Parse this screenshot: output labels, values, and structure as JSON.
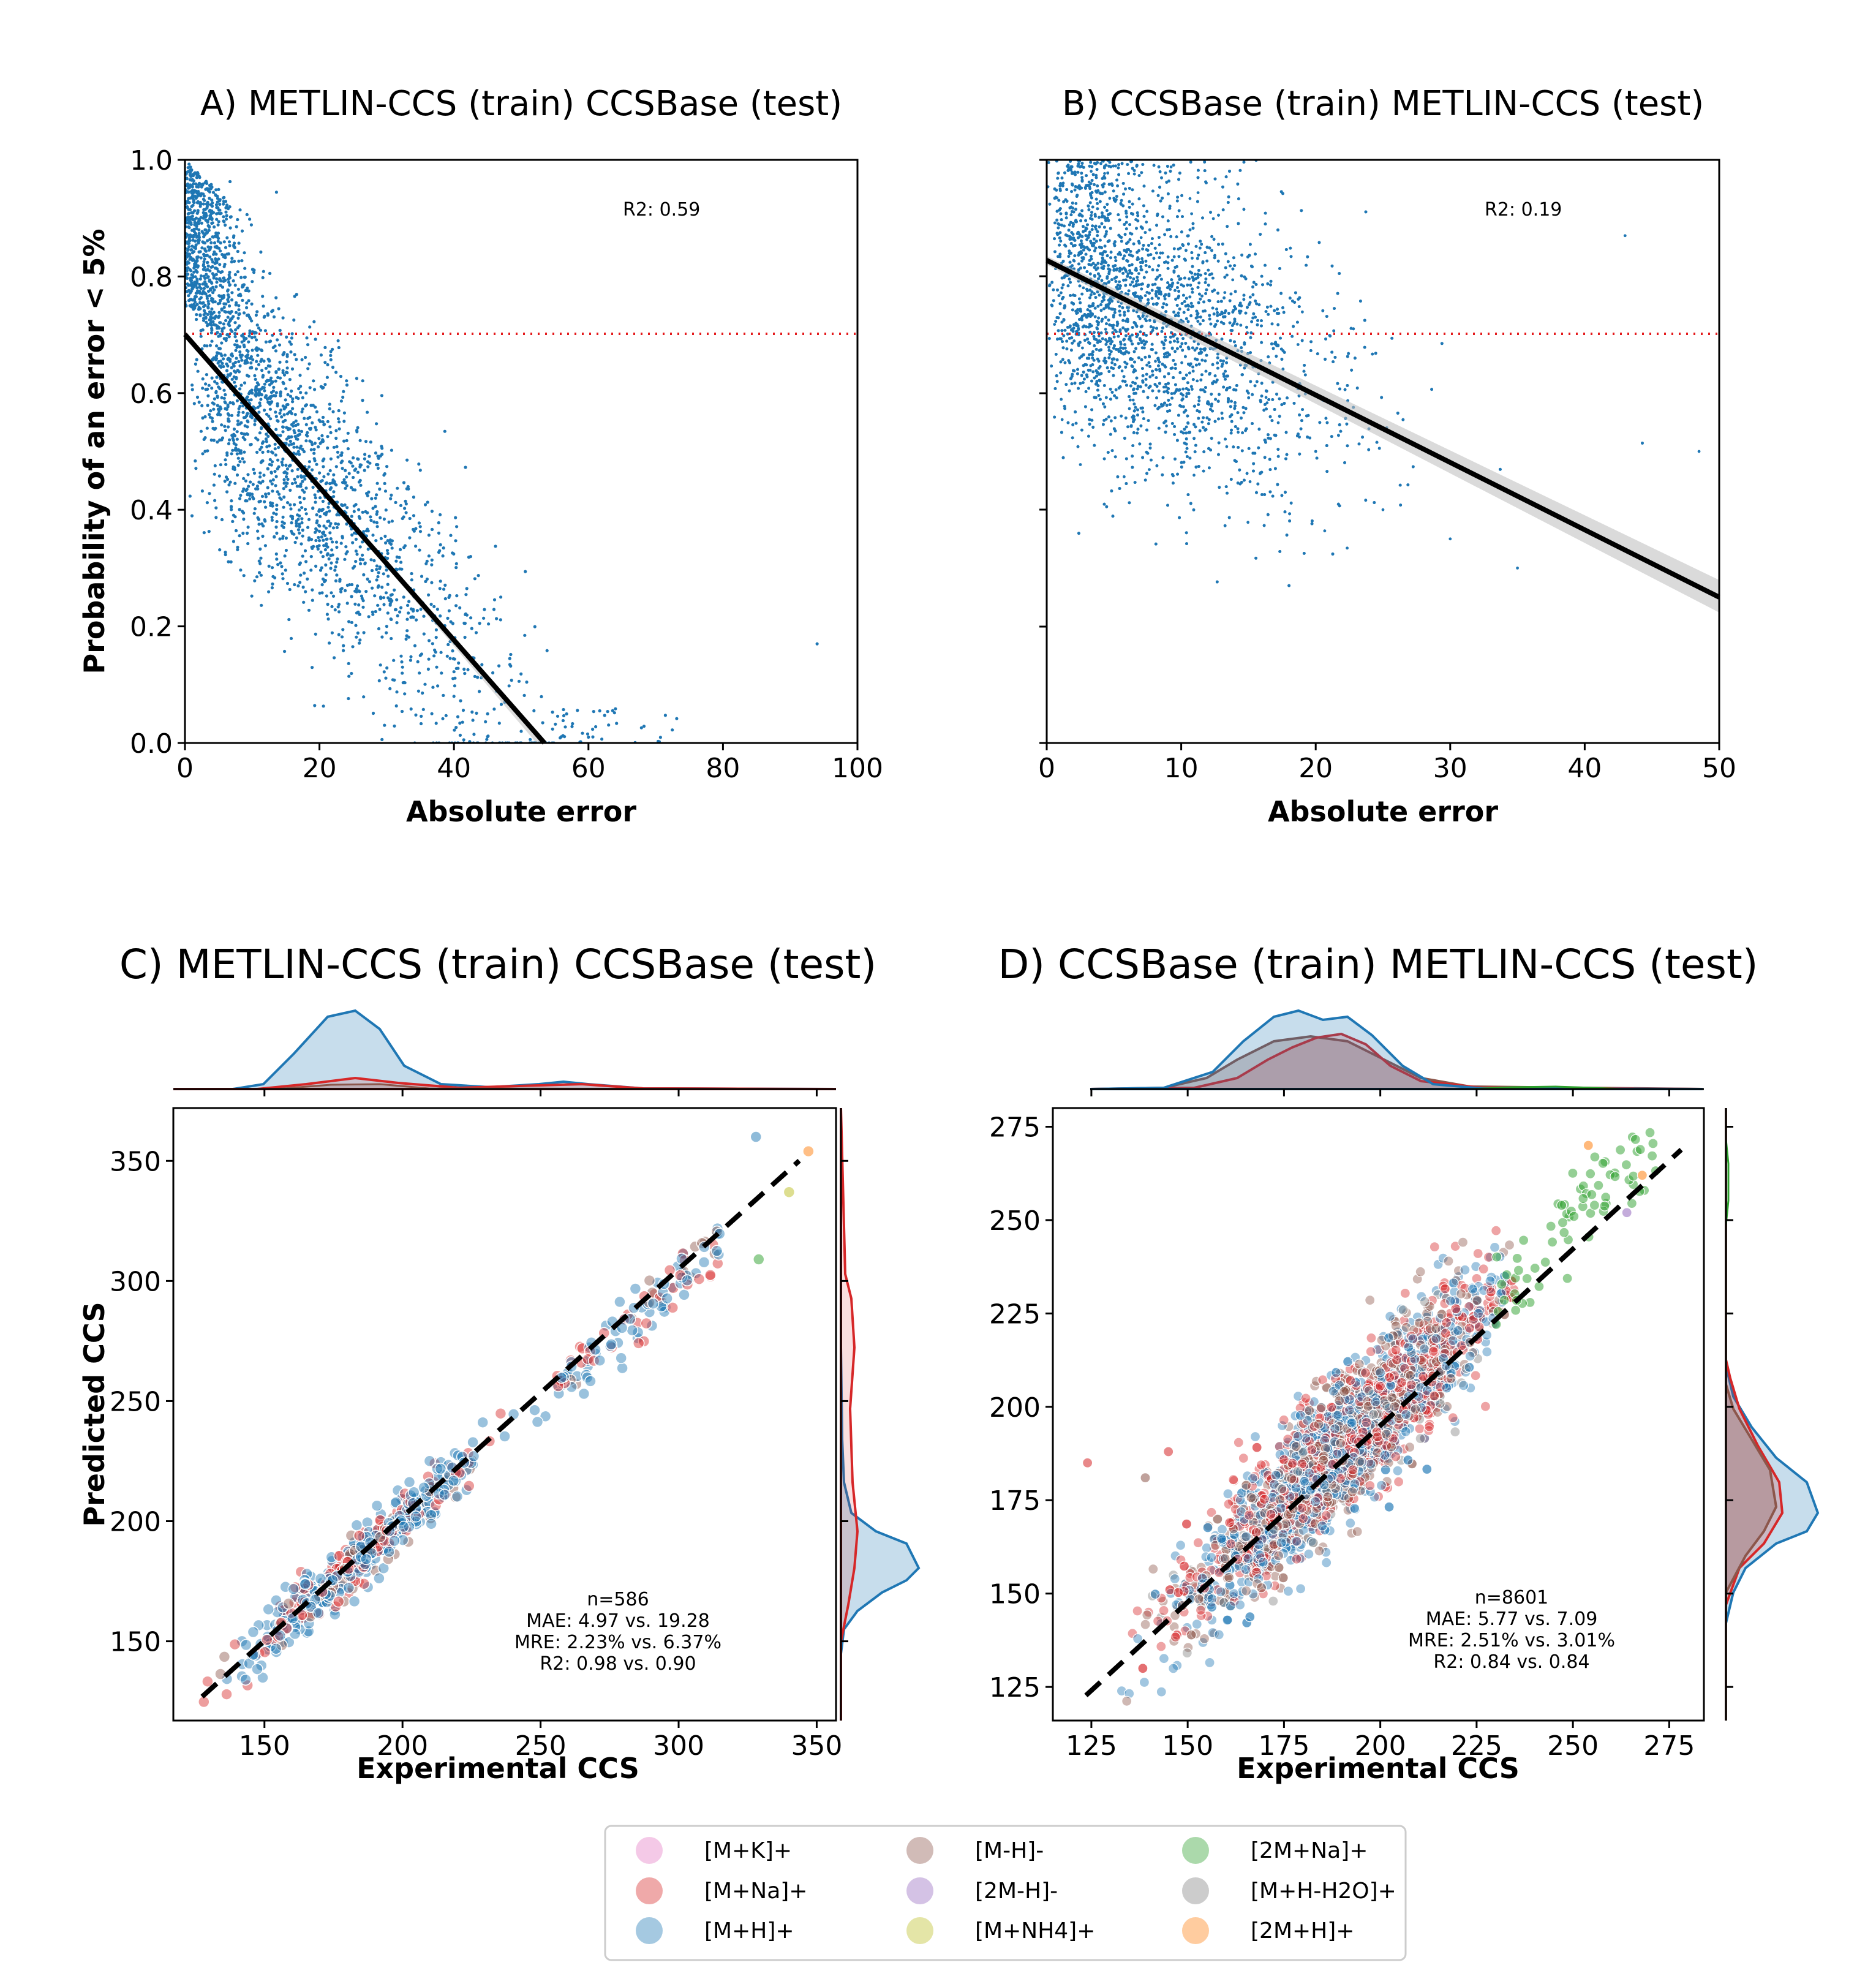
{
  "colors": {
    "scatter": "#1f77b4",
    "fit_line": "#000000",
    "threshold_line": "#e41a1c",
    "kde_blue": "#1f77b4",
    "kde_red": "#d62728",
    "kde_brown": "#8c564b",
    "kde_green": "#2ca02c"
  },
  "legend": {
    "items": [
      {
        "label": "[M+K]+",
        "color": "#e377c2"
      },
      {
        "label": "[M-H]-",
        "color": "#8c564b"
      },
      {
        "label": "[2M+Na]+",
        "color": "#2ca02c"
      },
      {
        "label": "[M+Na]+",
        "color": "#d62728"
      },
      {
        "label": "[2M-H]-",
        "color": "#9467bd"
      },
      {
        "label": "[M+H-H2O]+",
        "color": "#7f7f7f"
      },
      {
        "label": "[M+H]+",
        "color": "#1f77b4"
      },
      {
        "label": "[M+NH4]+",
        "color": "#bcbd22"
      },
      {
        "label": "[2M+H]+",
        "color": "#ff7f0e"
      }
    ]
  },
  "chart_data": [
    {
      "id": "A",
      "type": "scatter",
      "title": "A) METLIN-CCS (train) CCSBase (test)",
      "xlabel": "Absolute error",
      "ylabel": "Probability of an error < 5%",
      "xlim": [
        0,
        100
      ],
      "ylim": [
        0,
        1.0
      ],
      "xticks": [
        "0",
        "20",
        "40",
        "60",
        "80",
        "100"
      ],
      "yticks": [
        "0.0",
        "0.2",
        "0.4",
        "0.6",
        "0.8",
        "1.0"
      ],
      "annotation": "R2: 0.59",
      "threshold_y": 0.7,
      "fit_line": {
        "x": [
          0,
          53.5
        ],
        "y": [
          0.69,
          0.0
        ]
      },
      "n_points_approx": 3000,
      "points_sample": [
        [
          1,
          0.92
        ],
        [
          3,
          0.88
        ],
        [
          5,
          0.83
        ],
        [
          8,
          0.75
        ],
        [
          10,
          0.6
        ],
        [
          15,
          0.5
        ],
        [
          20,
          0.4
        ],
        [
          25,
          0.3
        ],
        [
          30,
          0.2
        ],
        [
          35,
          0.15
        ],
        [
          40,
          0.08
        ],
        [
          45,
          0.05
        ],
        [
          50,
          0.02
        ],
        [
          60,
          0.01
        ],
        [
          94,
          0.17
        ]
      ]
    },
    {
      "id": "B",
      "type": "scatter",
      "title": "B) CCSBase (train) METLIN-CCS (test)",
      "xlabel": "Absolute error",
      "ylabel": "",
      "xlim": [
        0,
        50
      ],
      "ylim": [
        0,
        1.0
      ],
      "xticks": [
        "0",
        "10",
        "20",
        "30",
        "40",
        "50"
      ],
      "annotation": "R2: 0.19",
      "threshold_y": 0.7,
      "fit_line": {
        "x": [
          0,
          50
        ],
        "y": [
          0.825,
          0.25
        ]
      },
      "n_points_approx": 8600,
      "points_sample": [
        [
          1,
          0.95
        ],
        [
          3,
          0.85
        ],
        [
          6,
          0.8
        ],
        [
          10,
          0.7
        ],
        [
          15,
          0.6
        ],
        [
          20,
          0.5
        ],
        [
          25,
          0.4
        ],
        [
          30,
          0.35
        ],
        [
          35,
          0.3
        ],
        [
          43,
          0.87
        ],
        [
          48.5,
          0.5
        ]
      ]
    },
    {
      "id": "C",
      "type": "scatter",
      "title": "C) METLIN-CCS (train) CCSBase (test)",
      "xlabel": "Experimental CCS",
      "ylabel": "Predicted CCS",
      "xlim": [
        117,
        357
      ],
      "ylim": [
        117,
        372
      ],
      "xticks": [
        "150",
        "200",
        "250",
        "300",
        "350"
      ],
      "yticks": [
        "150",
        "200",
        "250",
        "300",
        "350"
      ],
      "identity_line": [
        [
          128,
          128
        ],
        [
          347,
          347
        ]
      ],
      "stats": {
        "n": "n=586",
        "mae": "MAE: 4.97 vs. 19.28",
        "mre": "MRE: 2.23% vs. 6.37%",
        "r2": "R2: 0.98 vs. 0.90"
      },
      "n_points_approx": 586,
      "marginal_x": {
        "peaks": [
          {
            "x": 185,
            "series": "[M+H]+"
          },
          {
            "x": 260,
            "series": "[M+H]+"
          }
        ]
      },
      "marginal_y": {
        "peaks": [
          {
            "y": 185,
            "series": "[M+H]+"
          }
        ]
      }
    },
    {
      "id": "D",
      "type": "scatter",
      "title": "D) CCSBase (train) METLIN-CCS (test)",
      "xlabel": "Experimental CCS",
      "ylabel": "",
      "xlim": [
        115,
        284
      ],
      "ylim": [
        116,
        280
      ],
      "xticks": [
        "125",
        "150",
        "175",
        "200",
        "225",
        "250",
        "275"
      ],
      "yticks": [
        "125",
        "150",
        "175",
        "200",
        "225",
        "250",
        "275"
      ],
      "identity_line": [
        [
          123,
          123
        ],
        [
          272,
          272
        ]
      ],
      "stats": {
        "n": "n=8601",
        "mae": "MAE: 5.77 vs. 7.09",
        "mre": "MRE: 2.51% vs. 3.01%",
        "r2": "R2: 0.84 vs. 0.84"
      },
      "n_points_approx": 8601,
      "marginal_x": {
        "peaks": [
          {
            "x": 185,
            "series": "[M+H]+"
          },
          {
            "x": 190,
            "series": "[M+Na]+"
          }
        ]
      },
      "marginal_y": {
        "peaks": [
          {
            "y": 176,
            "series": "[M+H]+"
          },
          {
            "y": 180,
            "series": "[M+Na]+"
          }
        ]
      }
    }
  ]
}
